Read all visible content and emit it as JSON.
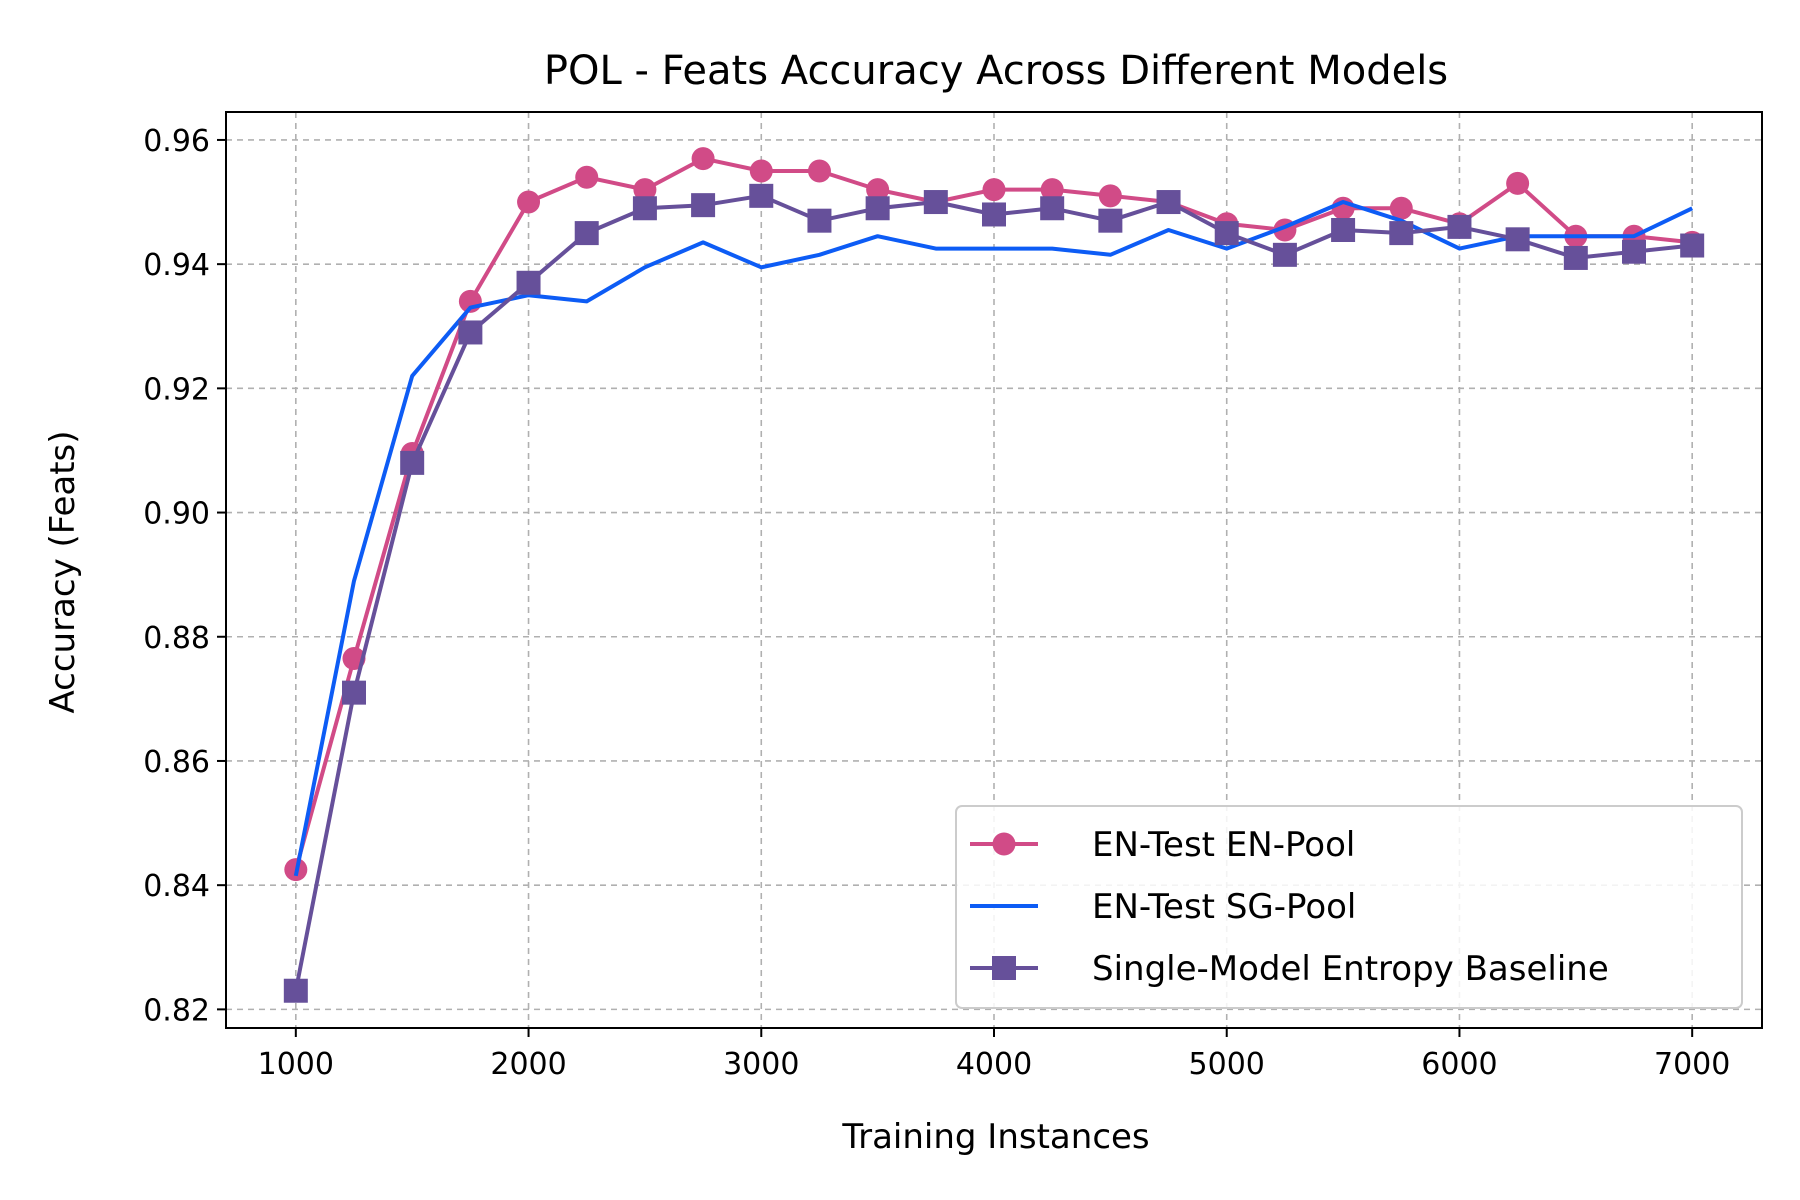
{
  "chart_data": {
    "type": "line",
    "title": "POL - Feats Accuracy Across Different Models",
    "xlabel": "Training Instances",
    "ylabel": "Accuracy (Feats)",
    "xlim": [
      700,
      7300
    ],
    "ylim": [
      0.817,
      0.9645
    ],
    "xticks": [
      1000,
      2000,
      3000,
      4000,
      5000,
      6000,
      7000
    ],
    "yticks": [
      0.82,
      0.84,
      0.86,
      0.88,
      0.9,
      0.92,
      0.94,
      0.96
    ],
    "ytick_labels": [
      "0.82",
      "0.84",
      "0.86",
      "0.88",
      "0.90",
      "0.92",
      "0.94",
      "0.96"
    ],
    "grid": true,
    "legend_position": "lower-right",
    "x": [
      1000,
      1250,
      1500,
      1750,
      2000,
      2250,
      2500,
      2750,
      3000,
      3250,
      3500,
      3750,
      4000,
      4250,
      4500,
      4750,
      5000,
      5250,
      5500,
      5750,
      6000,
      6250,
      6500,
      6750,
      7000
    ],
    "series": [
      {
        "name": "EN-Test EN-Pool",
        "color": "#d14b87",
        "marker": "circle",
        "values": [
          0.8425,
          0.8765,
          0.9095,
          0.934,
          0.95,
          0.954,
          0.952,
          0.957,
          0.955,
          0.955,
          0.952,
          0.95,
          0.952,
          0.952,
          0.951,
          0.95,
          0.9465,
          0.9455,
          0.949,
          0.949,
          0.9465,
          0.953,
          0.9445,
          0.9445,
          0.9435
        ]
      },
      {
        "name": "EN-Test SG-Pool",
        "color": "#0d5cf5",
        "marker": "none",
        "values": [
          0.8415,
          0.889,
          0.922,
          0.933,
          0.935,
          0.934,
          0.9395,
          0.9435,
          0.9395,
          0.9415,
          0.9445,
          0.9425,
          0.9425,
          0.9425,
          0.9415,
          0.9455,
          0.9425,
          0.946,
          0.95,
          0.947,
          0.9425,
          0.9445,
          0.9445,
          0.9445,
          0.949
        ]
      },
      {
        "name": "Single-Model Entropy Baseline",
        "color": "#66509a",
        "marker": "square",
        "values": [
          0.823,
          0.871,
          0.908,
          0.929,
          0.937,
          0.945,
          0.949,
          0.9495,
          0.951,
          0.947,
          0.949,
          0.95,
          0.948,
          0.949,
          0.947,
          0.95,
          0.945,
          0.9415,
          0.9455,
          0.945,
          0.946,
          0.944,
          0.941,
          0.942,
          0.943
        ]
      }
    ]
  }
}
